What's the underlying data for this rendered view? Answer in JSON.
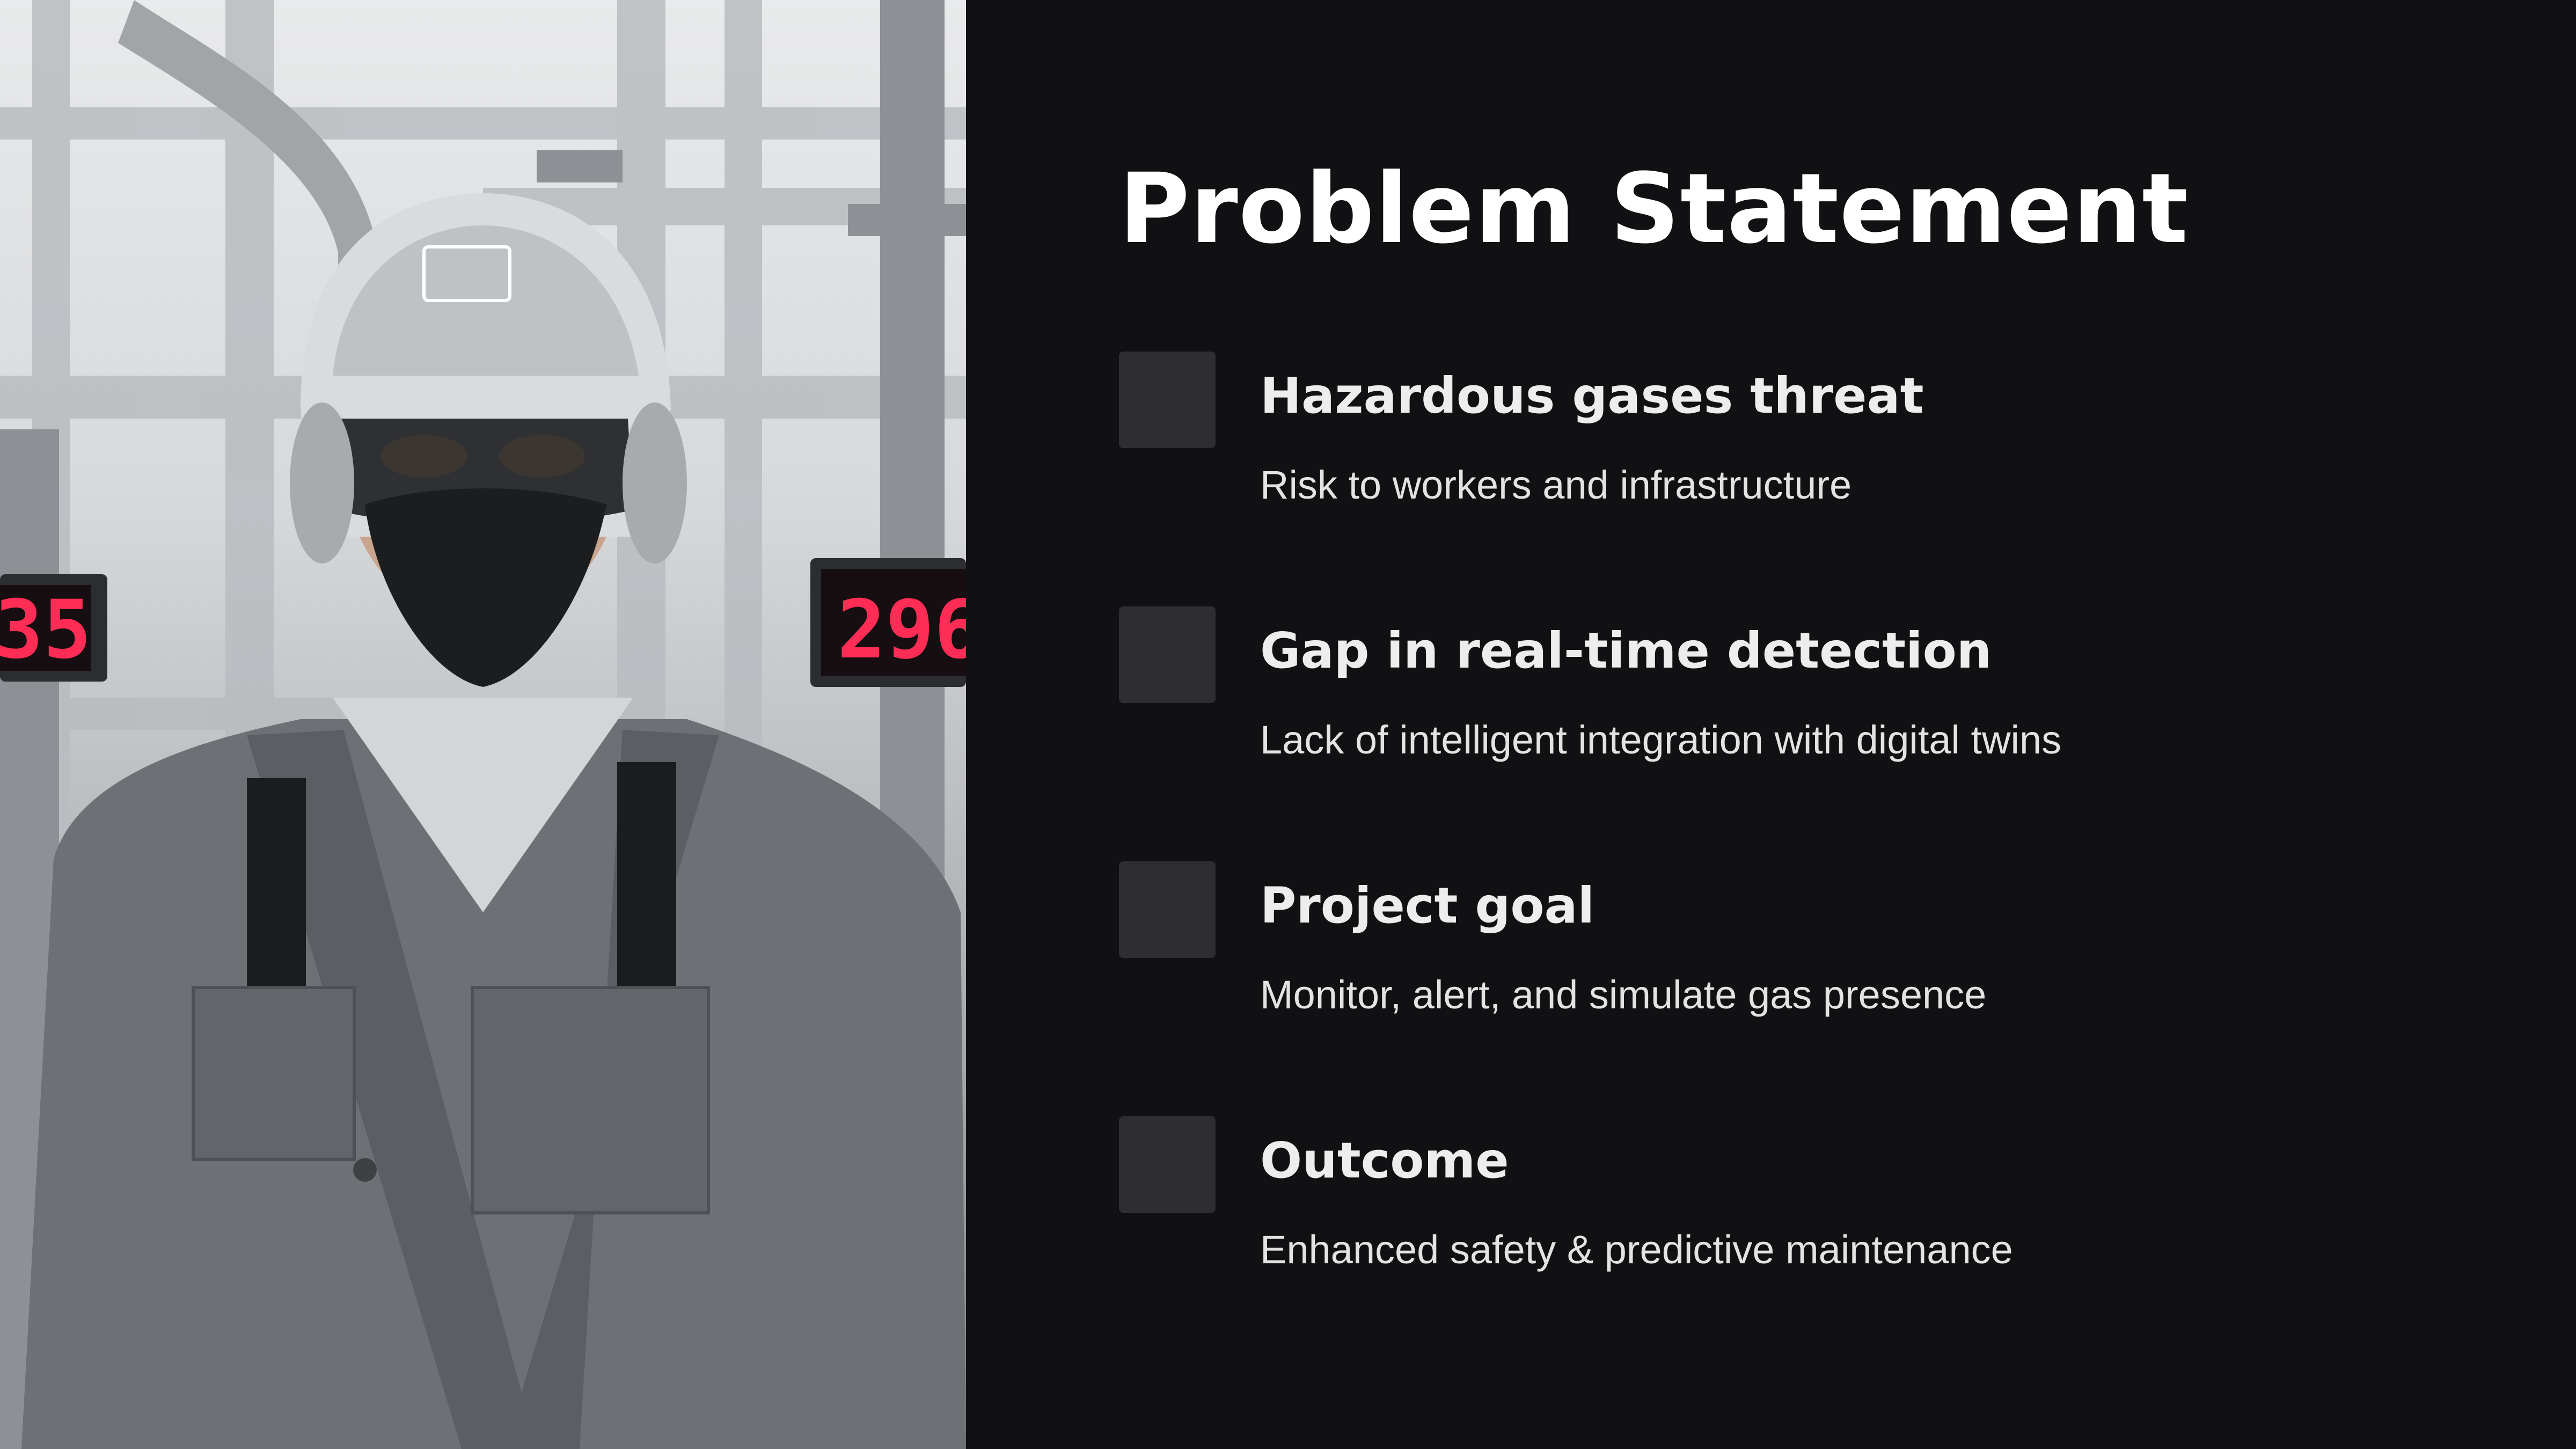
{
  "slide": {
    "title": "Problem Statement",
    "image": {
      "subject": "worker-in-protective-gear",
      "display_left": "35",
      "display_right": "296"
    },
    "items": [
      {
        "heading": "Hazardous gases threat",
        "description": "Risk to workers and infrastructure"
      },
      {
        "heading": "Gap in real-time detection",
        "description": "Lack of intelligent integration with digital twins"
      },
      {
        "heading": "Project goal",
        "description": "Monitor, alert, and simulate gas presence"
      },
      {
        "heading": "Outcome",
        "description": "Enhanced safety & predictive maintenance"
      }
    ]
  },
  "colors": {
    "background": "#111113",
    "title": "#ffffff",
    "heading": "#ededed",
    "description": "#e3e3e3",
    "icon_box": "#2e2e30",
    "display_digits": "#ff2d55"
  }
}
